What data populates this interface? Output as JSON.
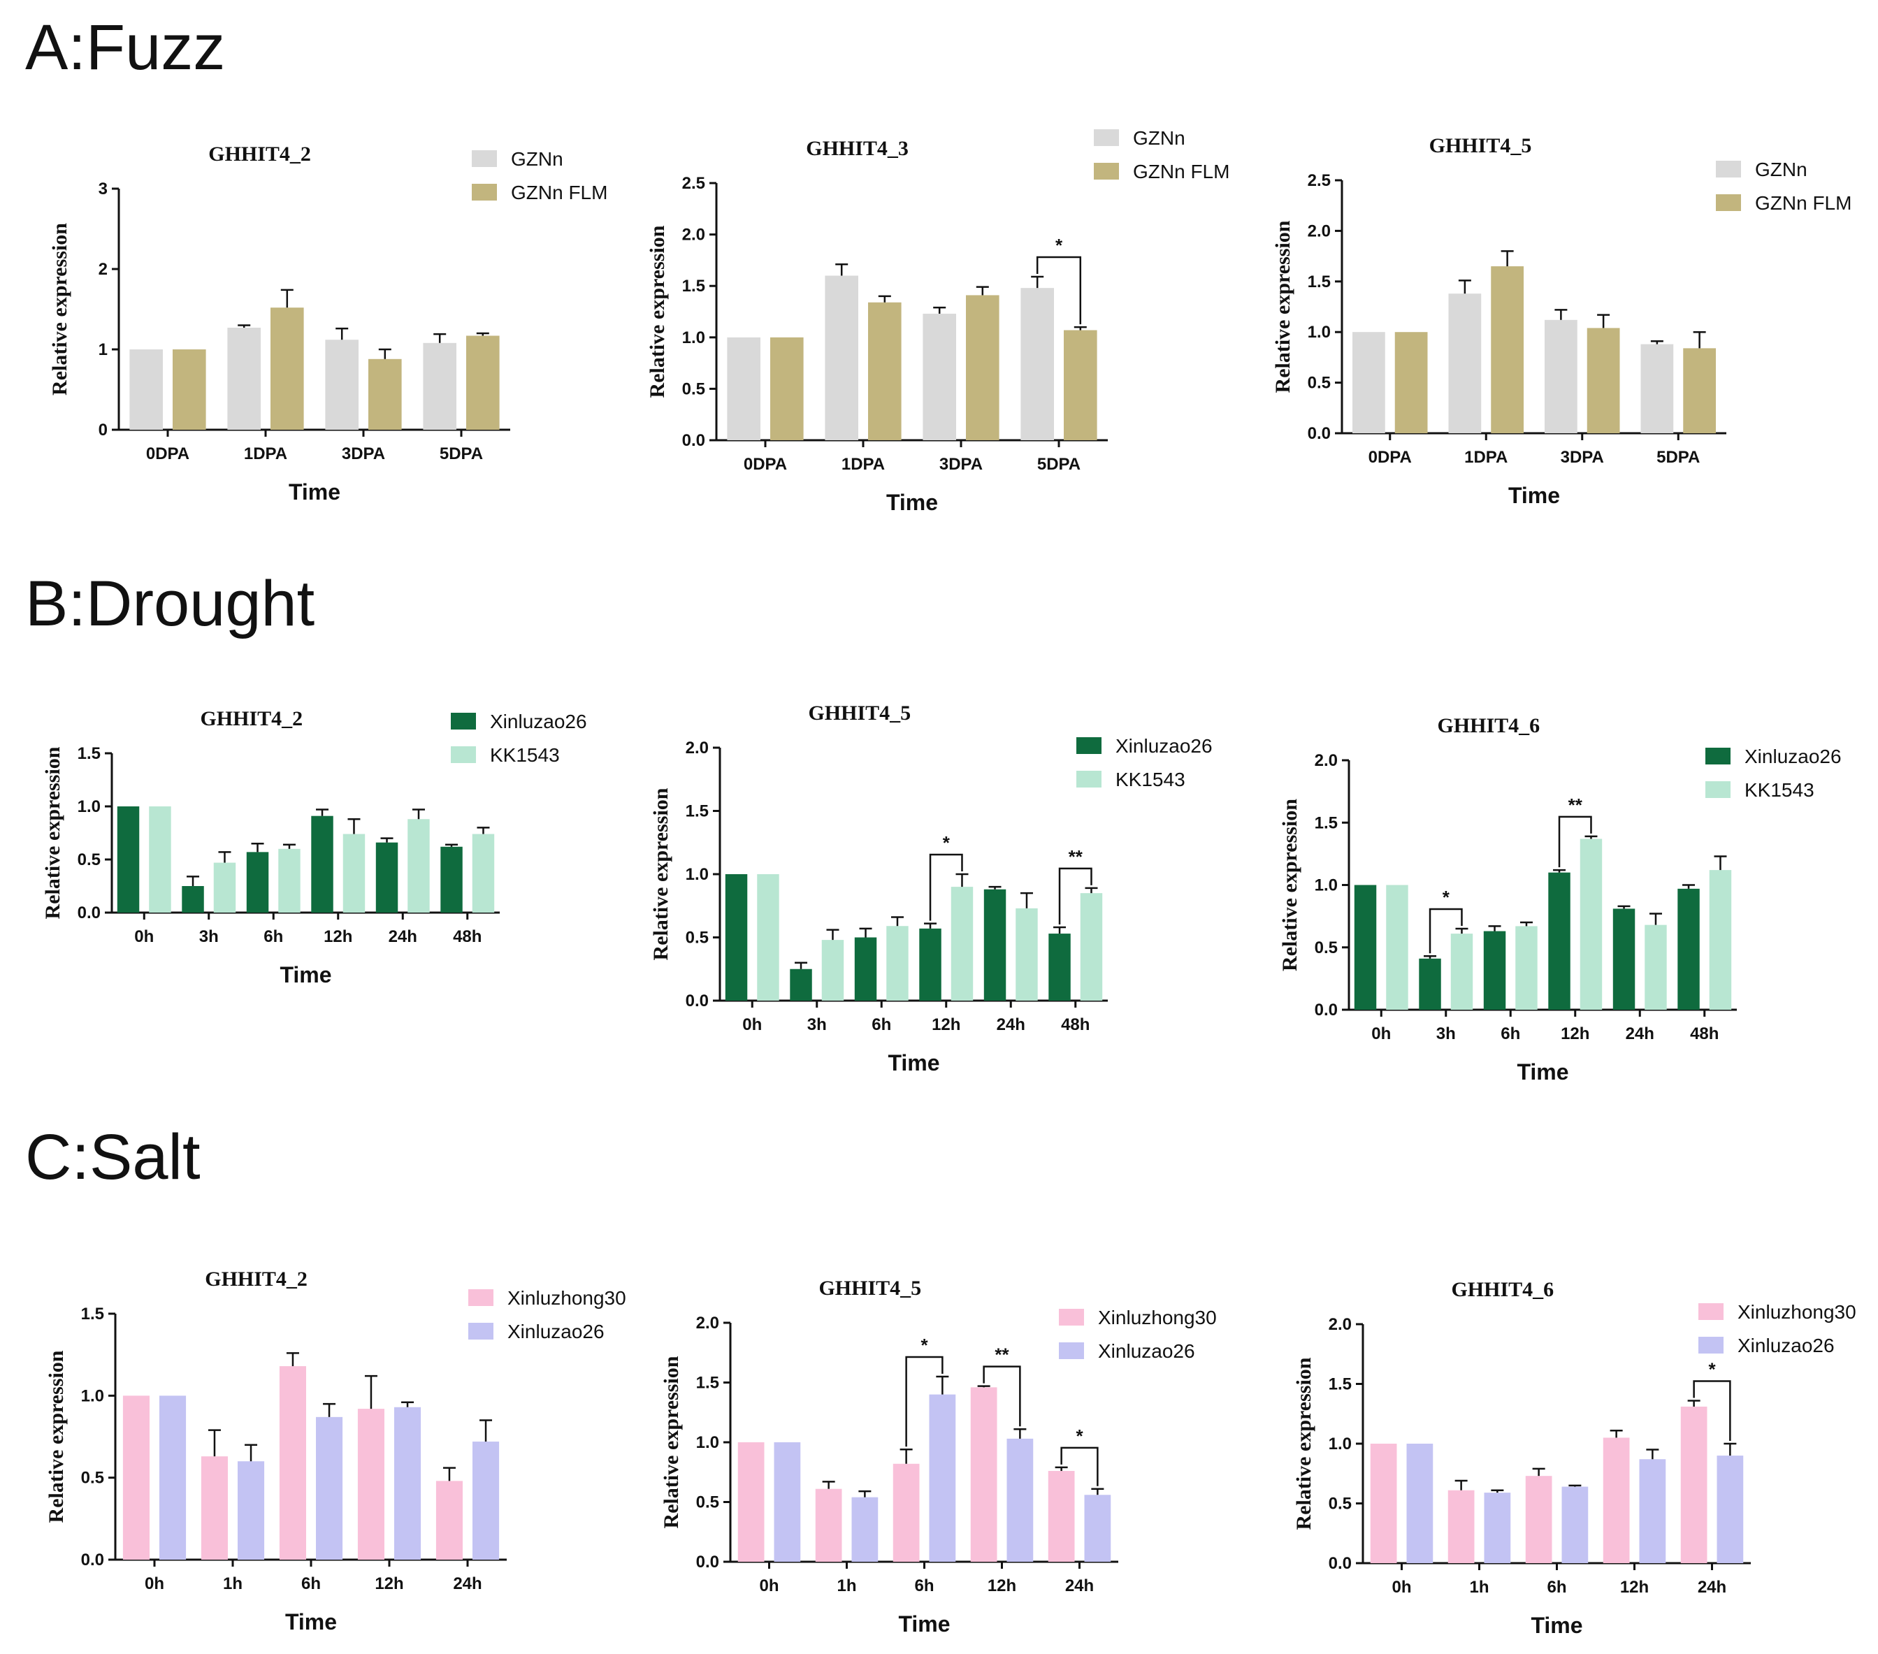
{
  "sections": [
    {
      "label": "A:Fuzz"
    },
    {
      "label": "B:Drought"
    },
    {
      "label": "C:Salt"
    }
  ],
  "chart_data": [
    {
      "type": "bar",
      "title": "GHHIT4_2",
      "xlabel": "Time",
      "ylabel": "Relative expression",
      "ylim": [
        0,
        3
      ],
      "yticks": [
        "0",
        "1",
        "2",
        "3"
      ],
      "categories": [
        "0DPA",
        "1DPA",
        "3DPA",
        "5DPA"
      ],
      "colors": [
        "#d9d9d9",
        "#c2b57e"
      ],
      "series": [
        {
          "name": "GZNn",
          "values": [
            1.0,
            1.27,
            1.12,
            1.08
          ],
          "errors": [
            0,
            0.03,
            0.14,
            0.11
          ]
        },
        {
          "name": "GZNn FLM",
          "values": [
            1.0,
            1.52,
            0.88,
            1.17
          ],
          "errors": [
            0,
            0.22,
            0.12,
            0.03
          ]
        }
      ],
      "sig": []
    },
    {
      "type": "bar",
      "title": "GHHIT4_3",
      "xlabel": "Time",
      "ylabel": "Relative expression",
      "ylim": [
        0,
        2.5
      ],
      "yticks": [
        "0.0",
        "0.5",
        "1.0",
        "1.5",
        "2.0",
        "2.5"
      ],
      "categories": [
        "0DPA",
        "1DPA",
        "3DPA",
        "5DPA"
      ],
      "colors": [
        "#d9d9d9",
        "#c2b57e"
      ],
      "series": [
        {
          "name": "GZNn",
          "values": [
            1.0,
            1.6,
            1.23,
            1.48
          ],
          "errors": [
            0,
            0.11,
            0.06,
            0.11
          ]
        },
        {
          "name": "GZNn FLM",
          "values": [
            1.0,
            1.34,
            1.41,
            1.07
          ],
          "errors": [
            0,
            0.06,
            0.08,
            0.03
          ]
        }
      ],
      "sig": [
        {
          "index": 3,
          "label": "*"
        }
      ]
    },
    {
      "type": "bar",
      "title": "GHHIT4_5",
      "xlabel": "Time",
      "ylabel": "Relative expression",
      "ylim": [
        0,
        2.5
      ],
      "yticks": [
        "0.0",
        "0.5",
        "1.0",
        "1.5",
        "2.0",
        "2.5"
      ],
      "categories": [
        "0DPA",
        "1DPA",
        "3DPA",
        "5DPA"
      ],
      "colors": [
        "#d9d9d9",
        "#c2b57e"
      ],
      "series": [
        {
          "name": "GZNn",
          "values": [
            1.0,
            1.38,
            1.12,
            0.88
          ],
          "errors": [
            0,
            0.13,
            0.1,
            0.03
          ]
        },
        {
          "name": "GZNn FLM",
          "values": [
            1.0,
            1.65,
            1.04,
            0.84
          ],
          "errors": [
            0,
            0.15,
            0.13,
            0.16
          ]
        }
      ],
      "sig": []
    },
    {
      "type": "bar",
      "title": "GHHIT4_2",
      "xlabel": "Time",
      "ylabel": "Relative expression",
      "ylim": [
        0,
        1.5
      ],
      "yticks": [
        "0.0",
        "0.5",
        "1.0",
        "1.5"
      ],
      "categories": [
        "0h",
        "3h",
        "6h",
        "12h",
        "24h",
        "48h"
      ],
      "colors": [
        "#0f6b3e",
        "#b8e6d2"
      ],
      "series": [
        {
          "name": "Xinluzao26",
          "values": [
            1.0,
            0.25,
            0.57,
            0.91,
            0.66,
            0.62
          ],
          "errors": [
            0,
            0.09,
            0.08,
            0.06,
            0.04,
            0.02
          ]
        },
        {
          "name": "KK1543",
          "values": [
            1.0,
            0.47,
            0.6,
            0.74,
            0.88,
            0.74
          ],
          "errors": [
            0,
            0.1,
            0.04,
            0.14,
            0.09,
            0.06
          ]
        }
      ],
      "sig": []
    },
    {
      "type": "bar",
      "title": "GHHIT4_5",
      "xlabel": "Time",
      "ylabel": "Relative expression",
      "ylim": [
        0,
        2.0
      ],
      "yticks": [
        "0.0",
        "0.5",
        "1.0",
        "1.5",
        "2.0"
      ],
      "categories": [
        "0h",
        "3h",
        "6h",
        "12h",
        "24h",
        "48h"
      ],
      "colors": [
        "#0f6b3e",
        "#b8e6d2"
      ],
      "series": [
        {
          "name": "Xinluzao26",
          "values": [
            1.0,
            0.25,
            0.5,
            0.57,
            0.88,
            0.53
          ],
          "errors": [
            0,
            0.05,
            0.07,
            0.04,
            0.02,
            0.05
          ]
        },
        {
          "name": "KK1543",
          "values": [
            1.0,
            0.48,
            0.59,
            0.9,
            0.73,
            0.85
          ],
          "errors": [
            0,
            0.08,
            0.07,
            0.1,
            0.12,
            0.04
          ]
        }
      ],
      "sig": [
        {
          "index": 3,
          "label": "*"
        },
        {
          "index": 5,
          "label": "**"
        }
      ]
    },
    {
      "type": "bar",
      "title": "GHHIT4_6",
      "xlabel": "Time",
      "ylabel": "Relative expression",
      "ylim": [
        0,
        2.0
      ],
      "yticks": [
        "0.0",
        "0.5",
        "1.0",
        "1.5",
        "2.0"
      ],
      "categories": [
        "0h",
        "3h",
        "6h",
        "12h",
        "24h",
        "48h"
      ],
      "colors": [
        "#0f6b3e",
        "#b8e6d2"
      ],
      "series": [
        {
          "name": "Xinluzao26",
          "values": [
            1.0,
            0.41,
            0.63,
            1.1,
            0.81,
            0.97
          ],
          "errors": [
            0,
            0.02,
            0.04,
            0.02,
            0.02,
            0.03
          ]
        },
        {
          "name": "KK1543",
          "values": [
            1.0,
            0.61,
            0.67,
            1.37,
            0.68,
            1.12
          ],
          "errors": [
            0,
            0.04,
            0.03,
            0.02,
            0.09,
            0.11
          ]
        }
      ],
      "sig": [
        {
          "index": 1,
          "label": "*"
        },
        {
          "index": 3,
          "label": "**"
        }
      ]
    },
    {
      "type": "bar",
      "title": "GHHIT4_2",
      "xlabel": "Time",
      "ylabel": "Relative expression",
      "ylim": [
        0,
        1.5
      ],
      "yticks": [
        "0.0",
        "0.5",
        "1.0",
        "1.5"
      ],
      "categories": [
        "0h",
        "1h",
        "6h",
        "12h",
        "24h"
      ],
      "colors": [
        "#f9c0d9",
        "#c3c3f3"
      ],
      "series": [
        {
          "name": "Xinluzhong30",
          "values": [
            1.0,
            0.63,
            1.18,
            0.92,
            0.48
          ],
          "errors": [
            0,
            0.16,
            0.08,
            0.2,
            0.08
          ]
        },
        {
          "name": "Xinluzao26",
          "values": [
            1.0,
            0.6,
            0.87,
            0.93,
            0.72
          ],
          "errors": [
            0,
            0.1,
            0.08,
            0.03,
            0.13
          ]
        }
      ],
      "sig": []
    },
    {
      "type": "bar",
      "title": "GHHIT4_5",
      "xlabel": "Time",
      "ylabel": "Relative expression",
      "ylim": [
        0,
        2.0
      ],
      "yticks": [
        "0.0",
        "0.5",
        "1.0",
        "1.5",
        "2.0"
      ],
      "categories": [
        "0h",
        "1h",
        "6h",
        "12h",
        "24h"
      ],
      "colors": [
        "#f9c0d9",
        "#c3c3f3"
      ],
      "series": [
        {
          "name": "Xinluzhong30",
          "values": [
            1.0,
            0.61,
            0.82,
            1.46,
            0.76
          ],
          "errors": [
            0,
            0.06,
            0.12,
            0.01,
            0.03
          ]
        },
        {
          "name": "Xinluzao26",
          "values": [
            1.0,
            0.54,
            1.4,
            1.03,
            0.56
          ],
          "errors": [
            0,
            0.05,
            0.15,
            0.08,
            0.05
          ]
        }
      ],
      "sig": [
        {
          "index": 2,
          "label": "*"
        },
        {
          "index": 3,
          "label": "**"
        },
        {
          "index": 4,
          "label": "*"
        }
      ]
    },
    {
      "type": "bar",
      "title": "GHHIT4_6",
      "xlabel": "Time",
      "ylabel": "Relative expression",
      "ylim": [
        0,
        2.0
      ],
      "yticks": [
        "0.0",
        "0.5",
        "1.0",
        "1.5",
        "2.0"
      ],
      "categories": [
        "0h",
        "1h",
        "6h",
        "12h",
        "24h"
      ],
      "colors": [
        "#f9c0d9",
        "#c3c3f3"
      ],
      "series": [
        {
          "name": "Xinluzhong30",
          "values": [
            1.0,
            0.61,
            0.73,
            1.05,
            1.31
          ],
          "errors": [
            0,
            0.08,
            0.06,
            0.06,
            0.05
          ]
        },
        {
          "name": "Xinluzao26",
          "values": [
            1.0,
            0.59,
            0.64,
            0.87,
            0.9
          ],
          "errors": [
            0,
            0.02,
            0.01,
            0.08,
            0.1
          ]
        }
      ],
      "sig": [
        {
          "index": 4,
          "label": "*"
        }
      ]
    }
  ]
}
